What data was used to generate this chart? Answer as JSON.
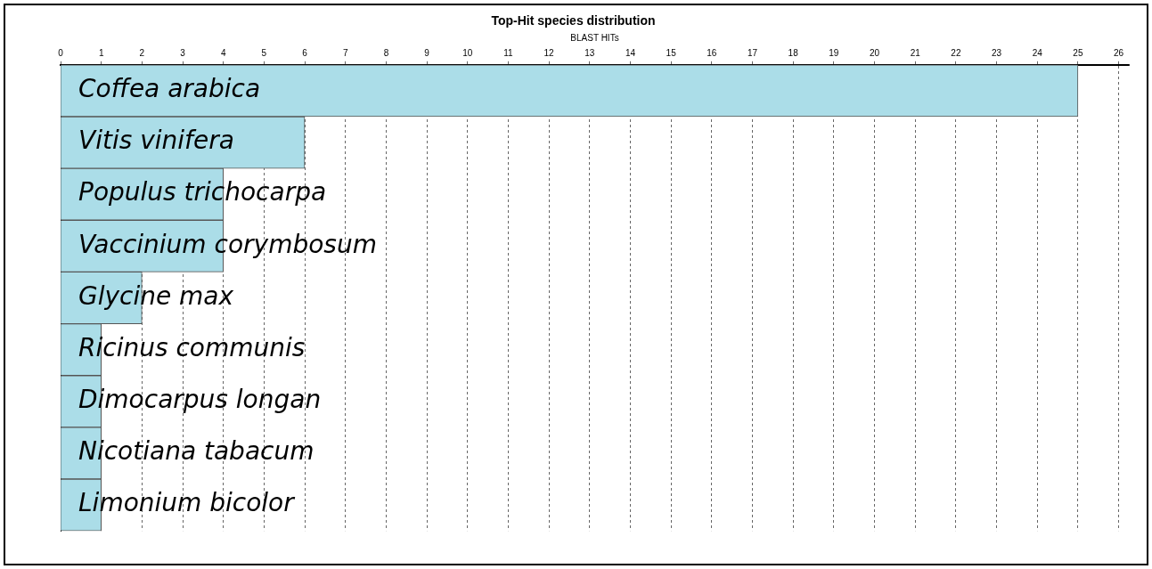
{
  "chart_data": {
    "type": "bar",
    "orientation": "horizontal",
    "title": "Top-Hit species distribution",
    "xlabel": "BLAST HITs",
    "categories": [
      "Coffea arabica",
      "Vitis vinifera",
      "Populus trichocarpa",
      "Vaccinium corymbosum",
      "Glycine max",
      "Ricinus communis",
      "Dimocarpus longan",
      "Nicotiana tabacum",
      "Limonium bicolor"
    ],
    "values": [
      25,
      6,
      4,
      4,
      2,
      1,
      1,
      1,
      1
    ],
    "color": "#abdde8",
    "xlim": [
      0,
      26.25
    ],
    "xticks": [
      0,
      1,
      2,
      3,
      4,
      5,
      6,
      7,
      8,
      9,
      10,
      11,
      12,
      13,
      14,
      15,
      16,
      17,
      18,
      19,
      20,
      21,
      22,
      23,
      24,
      25,
      26
    ],
    "grid": "x"
  }
}
